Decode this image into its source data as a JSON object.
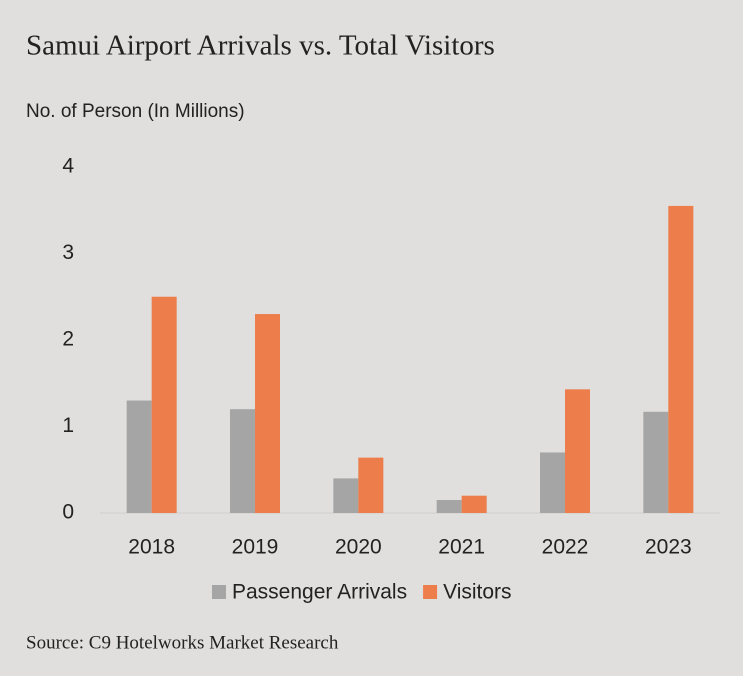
{
  "chart_data": {
    "type": "bar",
    "title": "Samui Airport Arrivals vs. Total Visitors",
    "subtitle": "No. of Person (In Millions)",
    "categories": [
      "2018",
      "2019",
      "2020",
      "2021",
      "2022",
      "2023"
    ],
    "series": [
      {
        "name": "Passenger Arrivals",
        "color": "#a5a5a5",
        "values": [
          1.3,
          1.2,
          0.4,
          0.15,
          0.7,
          1.17
        ]
      },
      {
        "name": "Visitors",
        "color": "#ed7d4a",
        "values": [
          2.5,
          2.3,
          0.64,
          0.2,
          1.43,
          3.55
        ]
      }
    ],
    "ylim": [
      0,
      4
    ],
    "yticks": [
      0,
      1,
      2,
      3,
      4
    ],
    "grid": false,
    "legend": "bottom",
    "source": "Source: C9 Hotelworks Market Research"
  }
}
